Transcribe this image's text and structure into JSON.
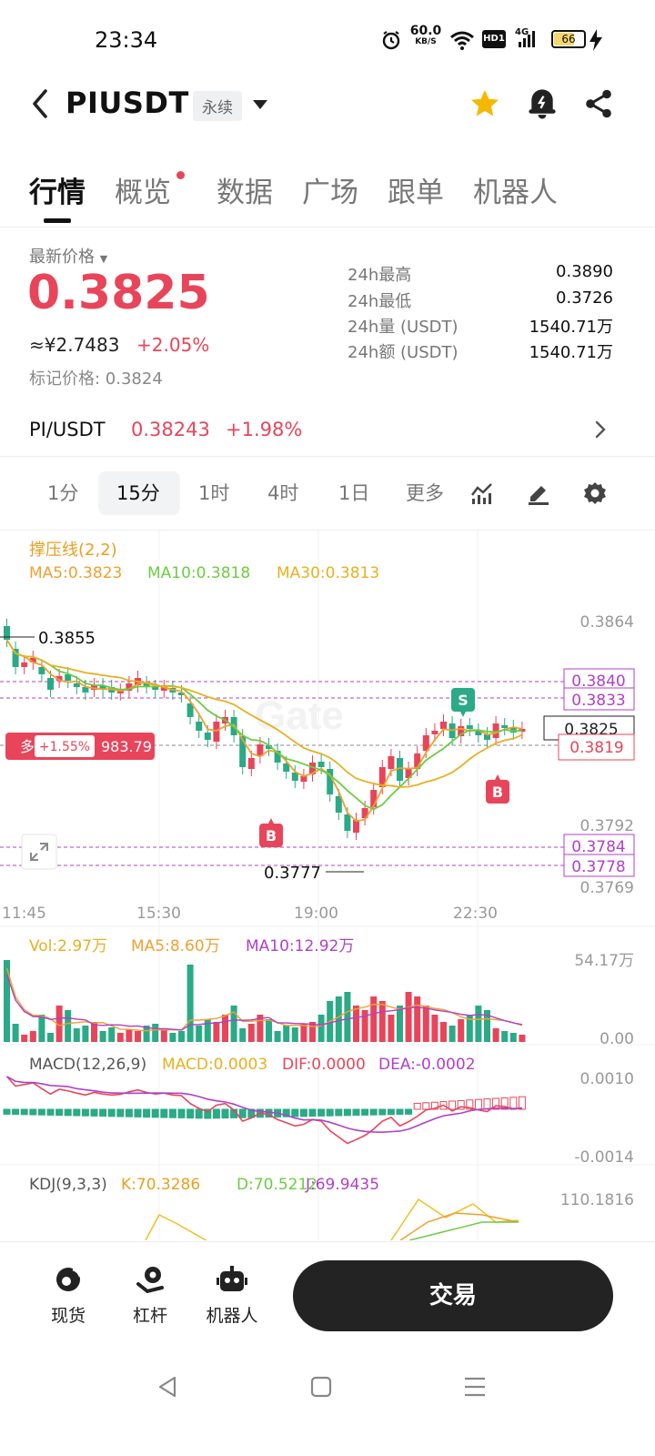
{
  "status_bar": {
    "time": "23:34",
    "net_speed_value": "60.0",
    "net_speed_unit": "KB/S",
    "hd_badge": "HD1",
    "network_type": "4G",
    "battery": "66",
    "icons": [
      "alarm-icon",
      "wifi-icon",
      "hd-icon",
      "signal-icon",
      "battery-icon",
      "charging-icon"
    ]
  },
  "header": {
    "symbol": "PIUSDT",
    "contract_type": "永续",
    "icons": [
      "back-icon",
      "star-icon",
      "bell-icon",
      "share-icon"
    ],
    "star_color": "#f5b800"
  },
  "tabs": [
    {
      "label": "行情",
      "active": true
    },
    {
      "label": "概览",
      "active": false,
      "dot": true
    },
    {
      "label": "数据",
      "active": false
    },
    {
      "label": "广场",
      "active": false
    },
    {
      "label": "跟单",
      "active": false
    },
    {
      "label": "机器人",
      "active": false
    }
  ],
  "price": {
    "label": "最新价格",
    "last": "0.3825",
    "cny": "≈¥2.7483",
    "change_pct": "+2.05%",
    "mark_price": "标记价格: 0.3824",
    "color_up": "#e8455a"
  },
  "stats": [
    {
      "label": "24h最高",
      "value": "0.3890"
    },
    {
      "label": "24h最低",
      "value": "0.3726"
    },
    {
      "label": "24h量 (USDT)",
      "value": "1540.71万"
    },
    {
      "label": "24h额 (USDT)",
      "value": "1540.71万"
    }
  ],
  "spot": {
    "pair": "PI/USDT",
    "price": "0.38243",
    "change": "+1.98%"
  },
  "intervals": {
    "items": [
      "1分",
      "15分",
      "1时",
      "4时",
      "1日",
      "更多"
    ],
    "active": "15分",
    "tool_icons": [
      "indicator-icon",
      "draw-icon",
      "settings-icon"
    ]
  },
  "chart": {
    "indicator_title": "撑压线(2,2)",
    "ma5": "MA5:0.3823",
    "ma10": "MA10:0.3818",
    "ma30": "MA30:0.3813",
    "y_ticks": [
      "0.3864",
      "0.3792",
      "0.3769"
    ],
    "high_marker": "0.3855",
    "low_marker": "0.3777",
    "level_tags": [
      "0.3840",
      "0.3833",
      "0.3825",
      "0.3819",
      "0.3784",
      "0.3778"
    ],
    "position": {
      "side": "多",
      "pnl_pct": "+1.55%",
      "size": "983.79"
    },
    "trade_marks": [
      "S",
      "B",
      "B"
    ],
    "x_ticks": [
      "11:45",
      "15:30",
      "19:00",
      "22:30"
    ],
    "watermark": "Gate",
    "volume": {
      "vol": "Vol:2.97万",
      "ma5": "MA5:8.60万",
      "ma10": "MA10:12.92万",
      "max": "54.17万",
      "min": "0.00"
    },
    "macd": {
      "title": "MACD(12,26,9)",
      "macd": "MACD:0.0003",
      "dif": "DIF:0.0000",
      "dea": "DEA:-0.0002",
      "max": "0.0010",
      "min": "-0.0014"
    },
    "kdj": {
      "title": "KDJ(9,3,3)",
      "k": "K:70.3286",
      "d": "D:70.5212",
      "j": "J:69.9435",
      "max": "110.1816"
    },
    "colors": {
      "up": "#e8455a",
      "down": "#2aaa86",
      "ma5": "#f0a030",
      "ma10": "#6ccc44",
      "ma30": "#e8b020",
      "purple": "#b040c8"
    }
  },
  "bottom_bar": {
    "items": [
      {
        "label": "现货",
        "icon": "spot-icon"
      },
      {
        "label": "杠杆",
        "icon": "margin-icon"
      },
      {
        "label": "机器人",
        "icon": "robot-icon"
      }
    ],
    "trade_label": "交易"
  },
  "nav_bar": {
    "icons": [
      "nav-back-icon",
      "nav-home-icon",
      "nav-menu-icon"
    ]
  }
}
